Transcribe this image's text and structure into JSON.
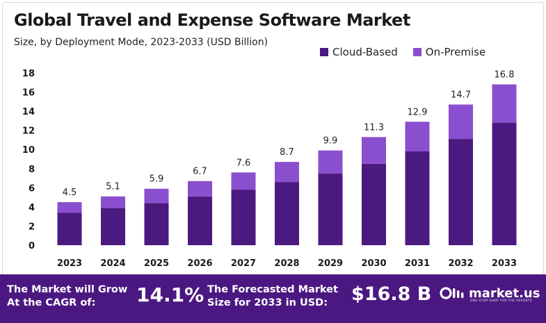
{
  "header": {
    "title": "Global Travel and Expense Software Market",
    "subtitle": "Size, by Deployment Mode, 2023-2033 (USD Billion)"
  },
  "legend": {
    "items": [
      {
        "label": "Cloud-Based",
        "color": "#4a1a80"
      },
      {
        "label": "On-Premise",
        "color": "#8a4fce"
      }
    ]
  },
  "chart_data": {
    "type": "bar",
    "stacked": true,
    "title": "Global Travel and Expense Software Market",
    "subtitle": "Size, by Deployment Mode, 2023-2033 (USD Billion)",
    "categories": [
      "2023",
      "2024",
      "2025",
      "2026",
      "2027",
      "2028",
      "2029",
      "2030",
      "2031",
      "2032",
      "2033"
    ],
    "series": [
      {
        "name": "Cloud-Based",
        "color": "#4a1a80",
        "values": [
          3.4,
          3.9,
          4.4,
          5.1,
          5.8,
          6.6,
          7.5,
          8.5,
          9.8,
          11.1,
          12.8
        ]
      },
      {
        "name": "On-Premise",
        "color": "#8a4fce",
        "values": [
          1.1,
          1.2,
          1.5,
          1.6,
          1.8,
          2.1,
          2.4,
          2.8,
          3.1,
          3.6,
          4.0
        ]
      }
    ],
    "totals": [
      "4.5",
      "5.1",
      "5.9",
      "6.7",
      "7.6",
      "8.7",
      "9.9",
      "11.3",
      "12.9",
      "14.7",
      "16.8"
    ],
    "ylim": [
      0,
      18
    ],
    "yticks": [
      "0",
      "2",
      "4",
      "6",
      "8",
      "10",
      "12",
      "14",
      "16",
      "18"
    ],
    "grid": false,
    "legend_position": "top-right"
  },
  "footer": {
    "cagr_label_line1": "The Market will Grow",
    "cagr_label_line2": "At the CAGR of:",
    "cagr_value": "14.1%",
    "forecast_label_line1": "The Forecasted Market",
    "forecast_label_line2": "Size for 2033 in USD:",
    "forecast_value": "$16.8 B",
    "brand": "market.us",
    "brand_tagline": "ONE STOP SHOP FOR THE REPORTS",
    "background_color": "#4b1882"
  }
}
